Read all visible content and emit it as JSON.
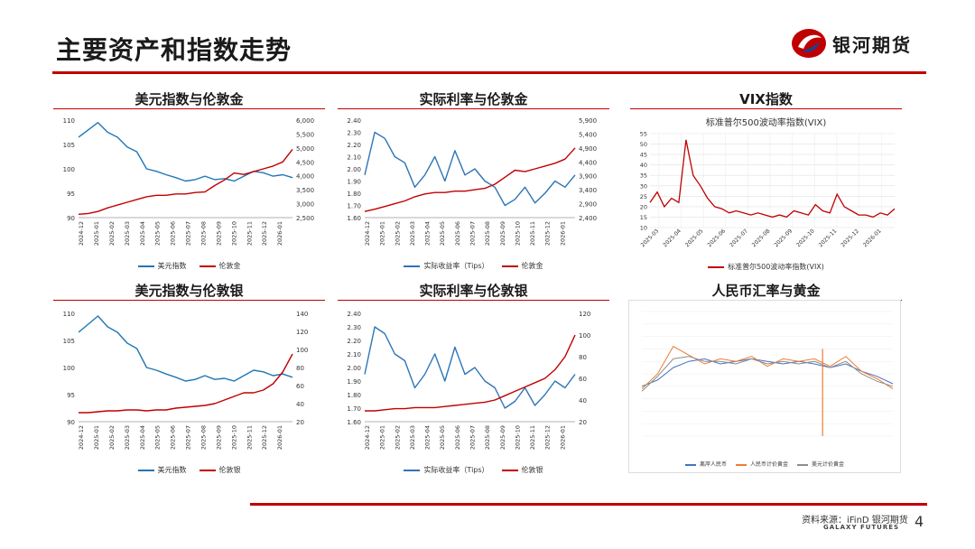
{
  "page": {
    "title": "主要资产和指数走势",
    "source": "资料来源：iFinD 银河期货",
    "galaxy": "GALAXY FUTURES",
    "page_number": "4"
  },
  "brand": {
    "name": "银河期货",
    "red": "#c00000",
    "blue": "#1f77b4",
    "orange": "#ed7d31",
    "gray": "#8c8c8c"
  },
  "charts": [
    {
      "id": "usd-gold",
      "title": "美元指数与伦敦金",
      "type": "line",
      "x_ticks": [
        "2024-12",
        "2025-01",
        "2025-02",
        "2025-03",
        "2025-04",
        "2025-05",
        "2025-06",
        "2025-07",
        "2025-08",
        "2025-09",
        "2025-10",
        "2025-11",
        "2025-12",
        "2026-01"
      ],
      "left_ticks": [
        "110",
        "105",
        "100",
        "95",
        "90"
      ],
      "left_range": [
        90,
        110
      ],
      "right_ticks": [
        "6,000",
        "5,500",
        "5,000",
        "4,500",
        "4,000",
        "3,500",
        "3,000",
        "2,500"
      ],
      "right_range": [
        2500,
        6000
      ],
      "series": [
        {
          "name": "美元指数",
          "axis": "left",
          "color": "#1f77b4",
          "values": [
            106.5,
            108.0,
            109.5,
            107.5,
            106.5,
            104.5,
            103.5,
            100.0,
            99.5,
            98.8,
            98.2,
            97.5,
            97.8,
            98.5,
            97.8,
            98.0,
            97.5,
            98.5,
            99.5,
            99.2,
            98.5,
            98.8,
            98.2
          ]
        },
        {
          "name": "伦敦金",
          "axis": "right",
          "color": "#c00000",
          "values": [
            2620,
            2650,
            2720,
            2850,
            2950,
            3050,
            3150,
            3250,
            3300,
            3300,
            3350,
            3350,
            3400,
            3420,
            3650,
            3850,
            4100,
            4050,
            4150,
            4250,
            4350,
            4500,
            4950
          ]
        }
      ]
    },
    {
      "id": "tips-gold",
      "title": "实际利率与伦敦金",
      "type": "line",
      "x_ticks": [
        "2024-12",
        "2025-01",
        "2025-02",
        "2025-03",
        "2025-04",
        "2025-05",
        "2025-06",
        "2025-07",
        "2025-08",
        "2025-09",
        "2025-10",
        "2025-11",
        "2025-12",
        "2026-01"
      ],
      "left_ticks": [
        "2.40",
        "2.30",
        "2.20",
        "2.10",
        "2.00",
        "1.90",
        "1.80",
        "1.70",
        "1.60"
      ],
      "left_range": [
        1.6,
        2.4
      ],
      "right_ticks": [
        "5,900",
        "5,400",
        "4,900",
        "4,400",
        "3,900",
        "3,400",
        "2,900",
        "2,400"
      ],
      "right_range": [
        2400,
        5900
      ],
      "series": [
        {
          "name": "实际收益率（Tips）",
          "axis": "left",
          "color": "#2e75b6",
          "values": [
            1.95,
            2.3,
            2.25,
            2.1,
            2.05,
            1.85,
            1.95,
            2.1,
            1.9,
            2.15,
            1.95,
            2.0,
            1.9,
            1.85,
            1.7,
            1.75,
            1.85,
            1.72,
            1.8,
            1.9,
            1.85,
            1.95
          ]
        },
        {
          "name": "伦敦金",
          "axis": "right",
          "color": "#c00000",
          "values": [
            2620,
            2700,
            2800,
            2900,
            3000,
            3150,
            3250,
            3300,
            3300,
            3350,
            3350,
            3400,
            3450,
            3600,
            3850,
            4100,
            4050,
            4150,
            4250,
            4350,
            4500,
            4900
          ]
        }
      ]
    },
    {
      "id": "vix",
      "title": "VIX指数",
      "type": "line",
      "subtitle": "标准普尔500波动率指数(VIX)",
      "x_ticks": [
        "2025-03",
        "2025-04",
        "2025-05",
        "2025-06",
        "2025-07",
        "2025-08",
        "2025-09",
        "2025-10",
        "2025-11",
        "2025-12",
        "2026-01"
      ],
      "left_ticks": [
        "55",
        "50",
        "45",
        "40",
        "35",
        "30",
        "25",
        "20",
        "15",
        "10"
      ],
      "left_range": [
        10,
        55
      ],
      "series": [
        {
          "name": "标准普尔500波动率指数(VIX)",
          "axis": "left",
          "color": "#c00000",
          "values": [
            22,
            27,
            20,
            24,
            22,
            52,
            35,
            30,
            24,
            20,
            19,
            17,
            18,
            17,
            16,
            17,
            16,
            15,
            16,
            15,
            18,
            17,
            16,
            21,
            18,
            17,
            26,
            20,
            18,
            16,
            16,
            15,
            17,
            16,
            19
          ]
        }
      ]
    },
    {
      "id": "usd-silver",
      "title": "美元指数与伦敦银",
      "type": "line",
      "x_ticks": [
        "2024-12",
        "2025-01",
        "2025-02",
        "2025-03",
        "2025-04",
        "2025-05",
        "2025-06",
        "2025-07",
        "2025-08",
        "2025-09",
        "2025-10",
        "2025-11",
        "2025-12",
        "2026-01"
      ],
      "left_ticks": [
        "110",
        "105",
        "100",
        "95",
        "90"
      ],
      "left_range": [
        90,
        110
      ],
      "right_ticks": [
        "140",
        "120",
        "100",
        "80",
        "60",
        "40",
        "20"
      ],
      "right_range": [
        20,
        140
      ],
      "series": [
        {
          "name": "美元指数",
          "axis": "left",
          "color": "#1f77b4",
          "values": [
            106.5,
            108.0,
            109.5,
            107.5,
            106.5,
            104.5,
            103.5,
            100.0,
            99.5,
            98.8,
            98.2,
            97.5,
            97.8,
            98.5,
            97.8,
            98.0,
            97.5,
            98.5,
            99.5,
            99.2,
            98.5,
            98.8,
            98.2
          ]
        },
        {
          "name": "伦敦银",
          "axis": "right",
          "color": "#c00000",
          "values": [
            30,
            30,
            31,
            32,
            32,
            33,
            33,
            32,
            33,
            33,
            35,
            36,
            37,
            38,
            40,
            44,
            48,
            52,
            52,
            55,
            62,
            75,
            95
          ]
        }
      ]
    },
    {
      "id": "tips-silver",
      "title": "实际利率与伦敦银",
      "type": "line",
      "x_ticks": [
        "2024-12",
        "2025-01",
        "2025-02",
        "2025-03",
        "2025-04",
        "2025-05",
        "2025-06",
        "2025-07",
        "2025-08",
        "2025-09",
        "2025-10",
        "2025-11",
        "2025-12",
        "2026-01"
      ],
      "left_ticks": [
        "2.40",
        "2.30",
        "2.20",
        "2.10",
        "2.00",
        "1.90",
        "1.80",
        "1.70",
        "1.60"
      ],
      "left_range": [
        1.6,
        2.4
      ],
      "right_ticks": [
        "120",
        "100",
        "80",
        "60",
        "40",
        "20"
      ],
      "right_range": [
        20,
        120
      ],
      "series": [
        {
          "name": "实际收益率（Tips）",
          "axis": "left",
          "color": "#2e75b6",
          "values": [
            1.95,
            2.3,
            2.25,
            2.1,
            2.05,
            1.85,
            1.95,
            2.1,
            1.9,
            2.15,
            1.95,
            2.0,
            1.9,
            1.85,
            1.7,
            1.75,
            1.85,
            1.72,
            1.8,
            1.9,
            1.85,
            1.95
          ]
        },
        {
          "name": "伦敦银",
          "axis": "right",
          "color": "#c00000",
          "values": [
            30,
            30,
            31,
            32,
            32,
            33,
            33,
            33,
            34,
            35,
            36,
            37,
            38,
            40,
            44,
            48,
            52,
            56,
            60,
            68,
            80,
            100
          ]
        }
      ]
    },
    {
      "id": "rmb-gold",
      "title": "人民币汇率与黄金",
      "type": "line",
      "series": [
        {
          "name": "离岸人民币",
          "color": "#4472c4",
          "values": [
            40,
            45,
            55,
            60,
            62,
            58,
            60,
            62,
            60,
            58,
            60,
            58,
            55,
            58,
            52,
            48,
            42
          ]
        },
        {
          "name": "人民币计价黄金",
          "color": "#ed7d31",
          "values": [
            38,
            50,
            72,
            65,
            58,
            62,
            60,
            64,
            56,
            62,
            60,
            62,
            56,
            64,
            52,
            46,
            38
          ]
        },
        {
          "name": "美元计价黄金",
          "color": "#8c8c8c",
          "values": [
            36,
            48,
            62,
            64,
            60,
            60,
            58,
            62,
            58,
            60,
            58,
            60,
            55,
            60,
            50,
            44,
            40
          ]
        }
      ]
    }
  ]
}
